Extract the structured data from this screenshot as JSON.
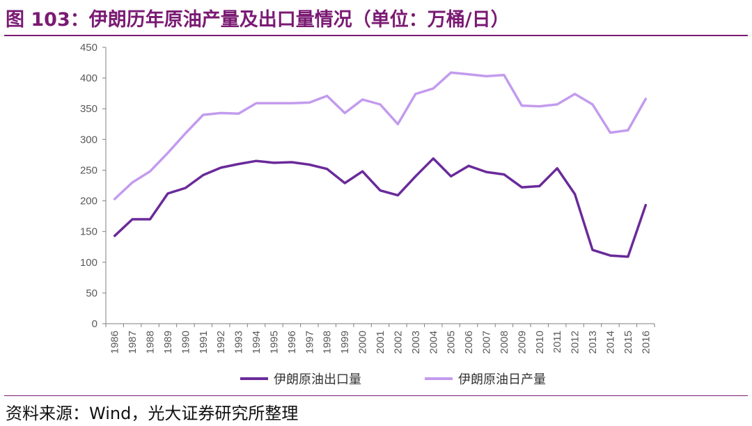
{
  "title": "图 103：伊朗历年原油产量及出口量情况（单位：万桶/日）",
  "source": "资料来源：Wind，光大证券研究所整理",
  "chart_data": {
    "type": "line",
    "ylim": [
      0,
      450
    ],
    "yticks": [
      0,
      50,
      100,
      150,
      200,
      250,
      300,
      350,
      400,
      450
    ],
    "categories": [
      "1986",
      "1987",
      "1988",
      "1989",
      "1990",
      "1991",
      "1992",
      "1993",
      "1994",
      "1995",
      "1996",
      "1997",
      "1998",
      "1999",
      "2000",
      "2001",
      "2002",
      "2003",
      "2004",
      "2005",
      "2006",
      "2007",
      "2008",
      "2009",
      "2010",
      "2011",
      "2012",
      "2013",
      "2014",
      "2015",
      "2016"
    ],
    "grid": false,
    "legend_position": "bottom",
    "series": [
      {
        "name": "伊朗原油出口量",
        "color": "#6a2a9a",
        "values": [
          143,
          170,
          170,
          212,
          221,
          242,
          254,
          260,
          265,
          262,
          263,
          259,
          252,
          229,
          248,
          217,
          209,
          240,
          269,
          240,
          257,
          247,
          243,
          222,
          224,
          253,
          211,
          120,
          111,
          109,
          193
        ]
      },
      {
        "name": "伊朗原油日产量",
        "color": "#c39bee",
        "values": [
          203,
          230,
          248,
          278,
          310,
          340,
          343,
          342,
          359,
          359,
          359,
          360,
          371,
          343,
          365,
          357,
          325,
          374,
          383,
          409,
          406,
          403,
          405,
          355,
          354,
          357,
          374,
          357,
          311,
          315,
          366
        ]
      }
    ]
  }
}
